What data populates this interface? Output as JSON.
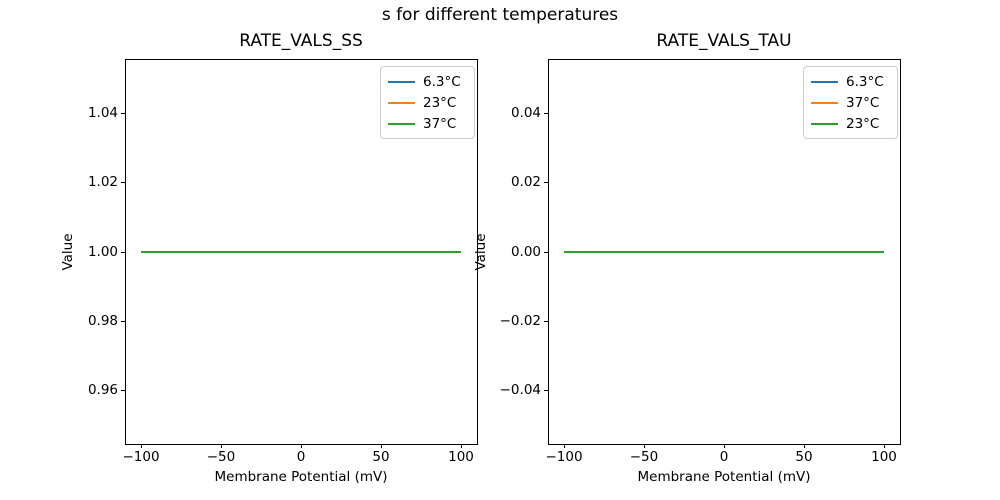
{
  "figure": {
    "suptitle": "s for different temperatures",
    "background": "#ffffff",
    "text_color": "#000000"
  },
  "palette": {
    "blue": "#1f77b4",
    "orange": "#ff7f0e",
    "green": "#2ca02c",
    "spine": "#000000",
    "legend_border": "#cccccc"
  },
  "chart_data": [
    {
      "type": "line",
      "title": "RATE_VALS_SS",
      "xlabel": "Membrane Potential (mV)",
      "ylabel": "Value",
      "xlim": [
        -110,
        110
      ],
      "ylim": [
        0.9443,
        1.0557
      ],
      "grid": false,
      "xticks": [
        {
          "value": -100,
          "label": "−100"
        },
        {
          "value": -50,
          "label": "−50"
        },
        {
          "value": 0,
          "label": "0"
        },
        {
          "value": 50,
          "label": "50"
        },
        {
          "value": 100,
          "label": "100"
        }
      ],
      "yticks": [
        {
          "value": 0.96,
          "label": "0.96"
        },
        {
          "value": 0.98,
          "label": "0.98"
        },
        {
          "value": 1.0,
          "label": "1.00"
        },
        {
          "value": 1.02,
          "label": "1.02"
        },
        {
          "value": 1.04,
          "label": "1.04"
        }
      ],
      "legend": {
        "position": "upper right",
        "entries": [
          {
            "label": "6.3°C",
            "color": "#1f77b4"
          },
          {
            "label": "23°C",
            "color": "#ff7f0e"
          },
          {
            "label": "37°C",
            "color": "#2ca02c"
          }
        ]
      },
      "series": [
        {
          "name": "6.3°C",
          "color": "#1f77b4",
          "x": [
            -100,
            100
          ],
          "y": [
            1.0,
            1.0
          ]
        },
        {
          "name": "23°C",
          "color": "#ff7f0e",
          "x": [
            -100,
            100
          ],
          "y": [
            1.0,
            1.0
          ]
        },
        {
          "name": "37°C",
          "color": "#2ca02c",
          "x": [
            -100,
            100
          ],
          "y": [
            1.0,
            1.0
          ]
        }
      ]
    },
    {
      "type": "line",
      "title": "RATE_VALS_TAU",
      "xlabel": "Membrane Potential (mV)",
      "ylabel": "Value",
      "xlim": [
        -110,
        110
      ],
      "ylim": [
        -0.0557,
        0.0557
      ],
      "grid": false,
      "xticks": [
        {
          "value": -100,
          "label": "−100"
        },
        {
          "value": -50,
          "label": "−50"
        },
        {
          "value": 0,
          "label": "0"
        },
        {
          "value": 50,
          "label": "50"
        },
        {
          "value": 100,
          "label": "100"
        }
      ],
      "yticks": [
        {
          "value": -0.04,
          "label": "−0.04"
        },
        {
          "value": -0.02,
          "label": "−0.02"
        },
        {
          "value": 0.0,
          "label": "0.00"
        },
        {
          "value": 0.02,
          "label": "0.02"
        },
        {
          "value": 0.04,
          "label": "0.04"
        }
      ],
      "legend": {
        "position": "upper right",
        "entries": [
          {
            "label": "6.3°C",
            "color": "#1f77b4"
          },
          {
            "label": "37°C",
            "color": "#ff7f0e"
          },
          {
            "label": "23°C",
            "color": "#2ca02c"
          }
        ]
      },
      "series": [
        {
          "name": "6.3°C",
          "color": "#1f77b4",
          "x": [
            -100,
            100
          ],
          "y": [
            0.0,
            0.0
          ]
        },
        {
          "name": "37°C",
          "color": "#ff7f0e",
          "x": [
            -100,
            100
          ],
          "y": [
            0.0,
            0.0
          ]
        },
        {
          "name": "23°C",
          "color": "#2ca02c",
          "x": [
            -100,
            100
          ],
          "y": [
            0.0,
            0.0
          ]
        }
      ]
    }
  ]
}
